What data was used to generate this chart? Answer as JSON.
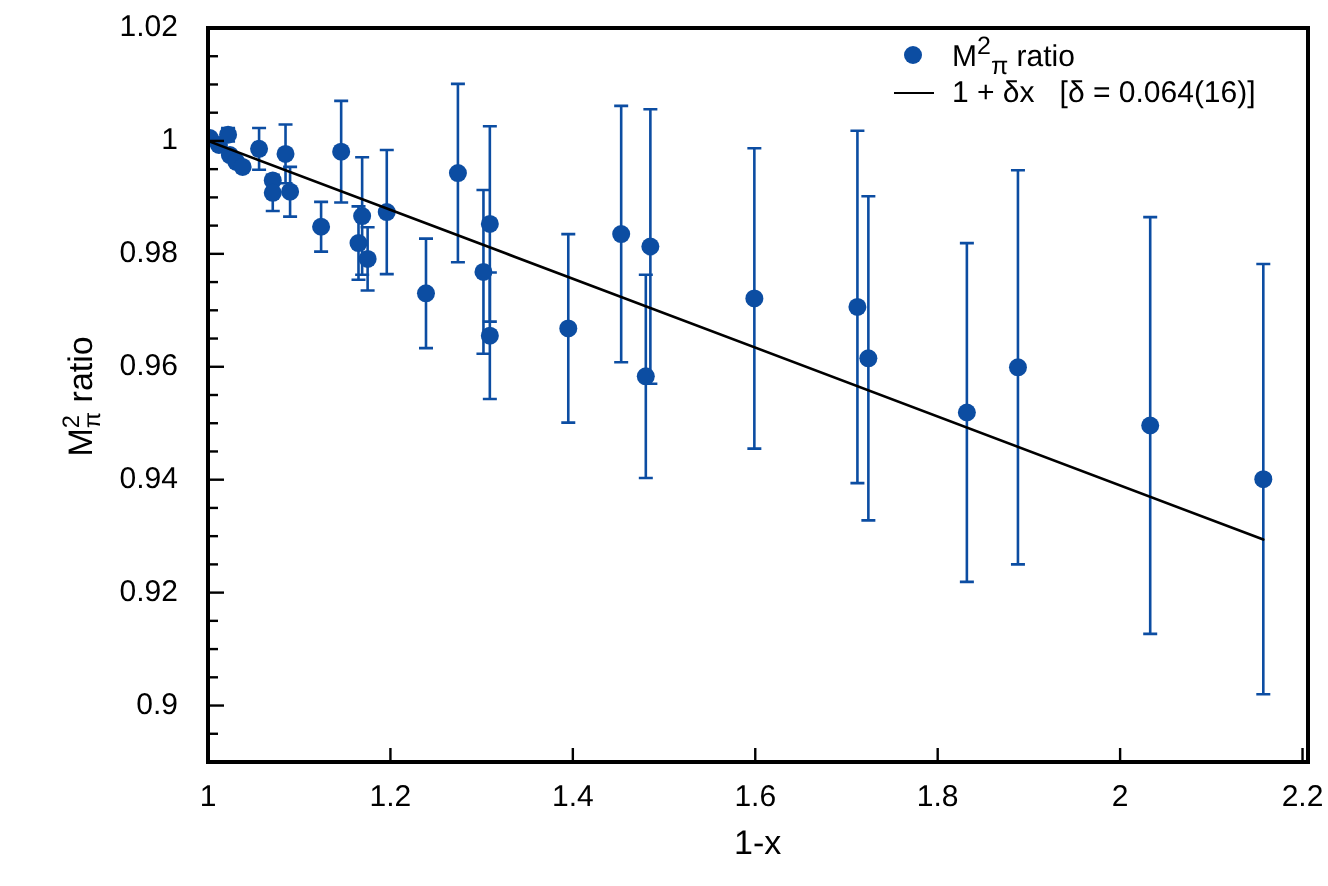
{
  "chart_data": {
    "type": "scatter",
    "xlabel": "1-x",
    "ylabel": "M$^{2}$$_{π}$ ratio",
    "x": [
      1.002,
      1.012,
      1.022,
      1.024,
      1.031,
      1.038,
      1.056,
      1.071,
      1.071,
      1.085,
      1.09,
      1.124,
      1.146,
      1.165,
      1.169,
      1.175,
      1.196,
      1.239,
      1.274,
      1.302,
      1.309,
      1.309,
      1.395,
      1.453,
      1.48,
      1.485,
      1.599,
      1.712,
      1.724,
      1.832,
      1.888,
      2.033,
      2.157
    ],
    "xlim": [
      1,
      2.206
    ],
    "xticks": [
      1,
      1.2,
      1.4,
      1.6,
      1.8,
      2,
      2.2
    ],
    "ylim": [
      0.89,
      1.02
    ],
    "yticks": [
      {
        "value": 0.895,
        "label": null
      },
      0.9,
      {
        "value": 0.905,
        "label": null
      },
      {
        "value": 0.91,
        "label": null
      },
      {
        "value": 0.915,
        "label": null
      },
      0.92,
      {
        "value": 0.925,
        "label": null
      },
      {
        "value": 0.93,
        "label": null
      },
      {
        "value": 0.935,
        "label": null
      },
      0.94,
      {
        "value": 0.945,
        "label": null
      },
      {
        "value": 0.95,
        "label": null
      },
      {
        "value": 0.955,
        "label": null
      },
      0.96,
      {
        "value": 0.965,
        "label": null
      },
      {
        "value": 0.97,
        "label": null
      },
      {
        "value": 0.975,
        "label": null
      },
      0.98,
      {
        "value": 0.985,
        "label": null
      },
      {
        "value": 0.99,
        "label": null
      },
      {
        "value": 0.995,
        "label": null
      },
      1,
      {
        "value": 1.005,
        "label": null
      },
      {
        "value": 1.01,
        "label": null
      },
      {
        "value": 1.015,
        "label": null
      },
      1.02
    ],
    "legend": "top right",
    "marker": "circle",
    "series": [
      {
        "name": "M$^{2}$$_{π}$ ratio",
        "color": "#0c4da2",
        "values": [
          1.0005,
          0.9993,
          1.0011,
          0.9975,
          0.9963,
          0.9954,
          0.9986,
          0.993,
          0.9908,
          0.9977,
          0.991,
          0.9848,
          0.9981,
          0.9819,
          0.9867,
          0.9791,
          0.9874,
          0.973,
          0.9943,
          0.9768,
          0.9853,
          0.9655,
          0.9668,
          0.9835,
          0.9583,
          0.9813,
          0.9721,
          0.9706,
          0.9615,
          0.9519,
          0.9599,
          0.9496,
          0.9401
        ],
        "errors": [
          null,
          null,
          0.0012,
          null,
          null,
          null,
          0.0037,
          null,
          0.0032,
          0.0052,
          0.0044,
          0.0044,
          0.009,
          0.0065,
          0.0104,
          0.0056,
          0.011,
          0.0097,
          0.0158,
          0.0145,
          0.0173,
          0.0112,
          0.0167,
          0.0227,
          0.018,
          0.0243,
          0.0266,
          0.0312,
          0.0287,
          0.03,
          0.0349,
          0.0369,
          0.0381
        ]
      },
      {
        "type": "line",
        "name": "1 + δx   [δ = 0.064(16)]",
        "color": "#000000",
        "marker": "none",
        "x": [
          1,
          2.157
        ],
        "values": [
          1,
          0.9294
        ]
      }
    ]
  }
}
